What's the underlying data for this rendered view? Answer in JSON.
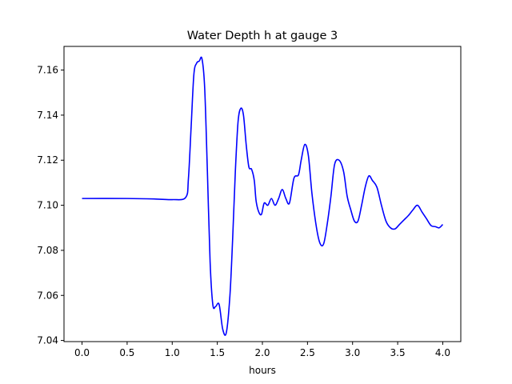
{
  "chart_data": {
    "type": "line",
    "title": "Water Depth h at gauge 3",
    "xlabel": "hours",
    "ylabel": "",
    "xlim": [
      -0.2,
      4.2
    ],
    "ylim": [
      7.0395,
      7.1705
    ],
    "xticks": [
      0.0,
      0.5,
      1.0,
      1.5,
      2.0,
      2.5,
      3.0,
      3.5,
      4.0
    ],
    "xtick_labels": [
      "0.0",
      "0.5",
      "1.0",
      "1.5",
      "2.0",
      "2.5",
      "3.0",
      "3.5",
      "4.0"
    ],
    "yticks": [
      7.04,
      7.06,
      7.08,
      7.1,
      7.12,
      7.14,
      7.16
    ],
    "ytick_labels": [
      "7.04",
      "7.06",
      "7.08",
      "7.10",
      "7.12",
      "7.14",
      "7.16"
    ],
    "grid": false,
    "series": [
      {
        "color": "#0000ff",
        "x": [
          0.0,
          0.5,
          0.8,
          1.0,
          1.15,
          1.18,
          1.21,
          1.24,
          1.27,
          1.3,
          1.33,
          1.36,
          1.39,
          1.42,
          1.45,
          1.48,
          1.52,
          1.56,
          1.6,
          1.64,
          1.67,
          1.7,
          1.73,
          1.76,
          1.79,
          1.82,
          1.85,
          1.88,
          1.91,
          1.93,
          1.96,
          1.99,
          2.02,
          2.06,
          2.1,
          2.14,
          2.18,
          2.22,
          2.26,
          2.3,
          2.35,
          2.4,
          2.43,
          2.47,
          2.51,
          2.55,
          2.6,
          2.64,
          2.68,
          2.72,
          2.76,
          2.8,
          2.85,
          2.9,
          2.94,
          2.98,
          3.02,
          3.06,
          3.1,
          3.14,
          3.18,
          3.22,
          3.27,
          3.32,
          3.37,
          3.42,
          3.47,
          3.52,
          3.57,
          3.62,
          3.67,
          3.72,
          3.77,
          3.82,
          3.87,
          3.92,
          3.96,
          4.0
        ],
        "y": [
          7.103,
          7.103,
          7.1028,
          7.1025,
          7.1035,
          7.112,
          7.135,
          7.158,
          7.163,
          7.164,
          7.165,
          7.152,
          7.115,
          7.075,
          7.056,
          7.055,
          7.056,
          7.045,
          7.0435,
          7.06,
          7.085,
          7.115,
          7.137,
          7.143,
          7.14,
          7.127,
          7.117,
          7.116,
          7.111,
          7.102,
          7.097,
          7.096,
          7.101,
          7.1,
          7.103,
          7.1,
          7.103,
          7.107,
          7.103,
          7.101,
          7.112,
          7.1135,
          7.12,
          7.127,
          7.122,
          7.105,
          7.09,
          7.083,
          7.083,
          7.092,
          7.104,
          7.118,
          7.12,
          7.115,
          7.104,
          7.098,
          7.093,
          7.093,
          7.1,
          7.108,
          7.113,
          7.111,
          7.108,
          7.1,
          7.093,
          7.09,
          7.0895,
          7.0915,
          7.0935,
          7.0955,
          7.098,
          7.1,
          7.097,
          7.094,
          7.091,
          7.0905,
          7.09,
          7.0915
        ]
      }
    ]
  }
}
